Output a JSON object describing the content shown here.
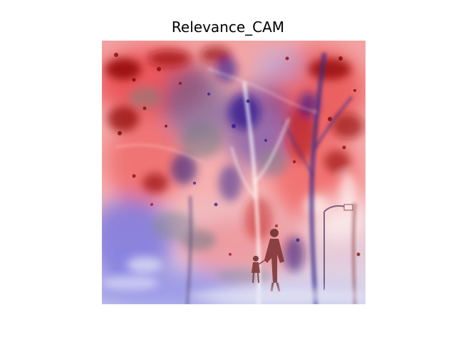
{
  "figure": {
    "title": "Relevance_CAM"
  },
  "image": {
    "description_icon": "relevance-heatmap-overlay",
    "colormap": [
      "#2b0f8c",
      "#8a8ad8",
      "#ffffff",
      "#f08a8a",
      "#8b0000"
    ]
  }
}
